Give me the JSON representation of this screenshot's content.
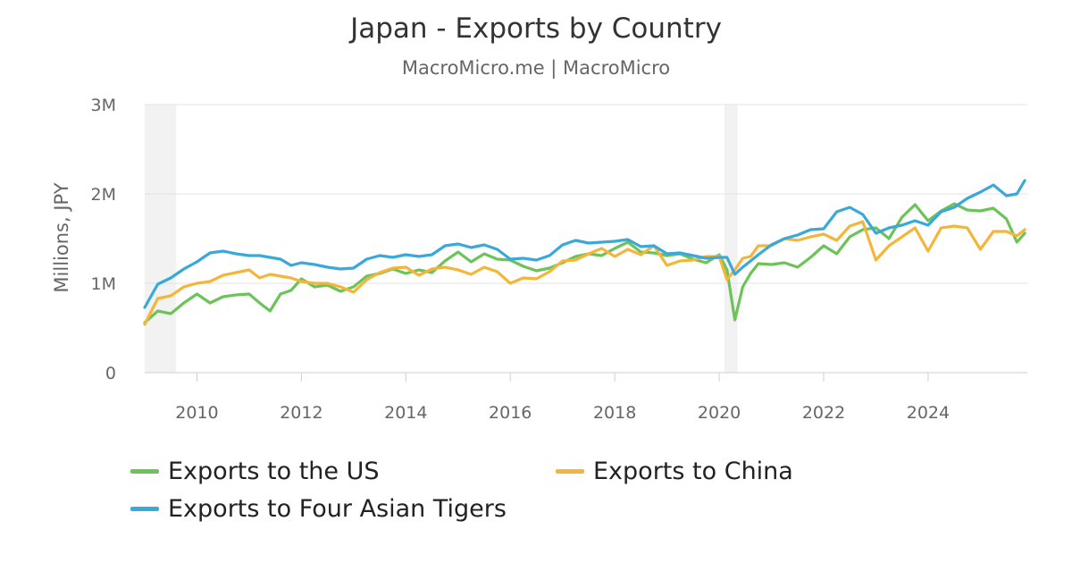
{
  "header": {
    "title": "Japan - Exports by Country",
    "subtitle": "MacroMicro.me | MacroMicro"
  },
  "colors": {
    "us": "#6cc35a",
    "china": "#f3b63b",
    "tigers": "#3aa8d8",
    "recession": "#f2f2f2",
    "grid": "#e3e3e3",
    "axis_text": "#666666"
  },
  "chart_data": {
    "type": "line",
    "ylabel": "Millions, JPY",
    "ylim": [
      0,
      3000000
    ],
    "xlim": [
      2009.0,
      2025.9
    ],
    "yticks": [
      {
        "value": 0,
        "label": "0"
      },
      {
        "value": 1000000,
        "label": "1M"
      },
      {
        "value": 2000000,
        "label": "2M"
      },
      {
        "value": 3000000,
        "label": "3M"
      }
    ],
    "xticks": [
      2010,
      2012,
      2014,
      2016,
      2018,
      2020,
      2022,
      2024
    ],
    "recession_bands": [
      [
        2009.0,
        2009.6
      ],
      [
        2020.1,
        2020.35
      ]
    ],
    "grid": true,
    "legend_position": "bottom",
    "series": [
      {
        "name": "Exports to the US",
        "key": "us",
        "points": [
          [
            2009.0,
            560000
          ],
          [
            2009.25,
            690000
          ],
          [
            2009.5,
            660000
          ],
          [
            2009.75,
            780000
          ],
          [
            2010.0,
            880000
          ],
          [
            2010.25,
            780000
          ],
          [
            2010.5,
            850000
          ],
          [
            2010.75,
            870000
          ],
          [
            2011.0,
            880000
          ],
          [
            2011.2,
            780000
          ],
          [
            2011.4,
            690000
          ],
          [
            2011.6,
            880000
          ],
          [
            2011.8,
            920000
          ],
          [
            2012.0,
            1050000
          ],
          [
            2012.25,
            960000
          ],
          [
            2012.5,
            980000
          ],
          [
            2012.75,
            910000
          ],
          [
            2013.0,
            960000
          ],
          [
            2013.25,
            1080000
          ],
          [
            2013.5,
            1110000
          ],
          [
            2013.75,
            1160000
          ],
          [
            2014.0,
            1110000
          ],
          [
            2014.25,
            1150000
          ],
          [
            2014.5,
            1120000
          ],
          [
            2014.75,
            1250000
          ],
          [
            2015.0,
            1350000
          ],
          [
            2015.25,
            1240000
          ],
          [
            2015.5,
            1330000
          ],
          [
            2015.75,
            1270000
          ],
          [
            2016.0,
            1260000
          ],
          [
            2016.25,
            1190000
          ],
          [
            2016.5,
            1140000
          ],
          [
            2016.75,
            1170000
          ],
          [
            2017.0,
            1230000
          ],
          [
            2017.25,
            1300000
          ],
          [
            2017.5,
            1330000
          ],
          [
            2017.75,
            1310000
          ],
          [
            2018.0,
            1390000
          ],
          [
            2018.25,
            1460000
          ],
          [
            2018.5,
            1350000
          ],
          [
            2018.75,
            1340000
          ],
          [
            2019.0,
            1310000
          ],
          [
            2019.25,
            1330000
          ],
          [
            2019.5,
            1270000
          ],
          [
            2019.75,
            1230000
          ],
          [
            2020.0,
            1320000
          ],
          [
            2020.15,
            1150000
          ],
          [
            2020.3,
            590000
          ],
          [
            2020.45,
            960000
          ],
          [
            2020.6,
            1110000
          ],
          [
            2020.75,
            1220000
          ],
          [
            2021.0,
            1210000
          ],
          [
            2021.25,
            1230000
          ],
          [
            2021.5,
            1180000
          ],
          [
            2021.75,
            1290000
          ],
          [
            2022.0,
            1420000
          ],
          [
            2022.25,
            1330000
          ],
          [
            2022.5,
            1520000
          ],
          [
            2022.75,
            1600000
          ],
          [
            2023.0,
            1620000
          ],
          [
            2023.25,
            1500000
          ],
          [
            2023.5,
            1740000
          ],
          [
            2023.75,
            1880000
          ],
          [
            2024.0,
            1700000
          ],
          [
            2024.25,
            1810000
          ],
          [
            2024.5,
            1890000
          ],
          [
            2024.75,
            1820000
          ],
          [
            2025.0,
            1810000
          ],
          [
            2025.25,
            1840000
          ],
          [
            2025.5,
            1720000
          ],
          [
            2025.7,
            1460000
          ],
          [
            2025.85,
            1560000
          ]
        ]
      },
      {
        "name": "Exports to China",
        "key": "china",
        "points": [
          [
            2009.0,
            540000
          ],
          [
            2009.25,
            830000
          ],
          [
            2009.5,
            860000
          ],
          [
            2009.75,
            960000
          ],
          [
            2010.0,
            1000000
          ],
          [
            2010.25,
            1020000
          ],
          [
            2010.5,
            1090000
          ],
          [
            2010.75,
            1120000
          ],
          [
            2011.0,
            1150000
          ],
          [
            2011.2,
            1060000
          ],
          [
            2011.4,
            1100000
          ],
          [
            2011.6,
            1080000
          ],
          [
            2011.8,
            1060000
          ],
          [
            2012.0,
            1020000
          ],
          [
            2012.25,
            1000000
          ],
          [
            2012.5,
            1000000
          ],
          [
            2012.75,
            960000
          ],
          [
            2013.0,
            900000
          ],
          [
            2013.25,
            1040000
          ],
          [
            2013.5,
            1120000
          ],
          [
            2013.75,
            1170000
          ],
          [
            2014.0,
            1180000
          ],
          [
            2014.25,
            1090000
          ],
          [
            2014.5,
            1160000
          ],
          [
            2014.75,
            1180000
          ],
          [
            2015.0,
            1150000
          ],
          [
            2015.25,
            1100000
          ],
          [
            2015.5,
            1180000
          ],
          [
            2015.75,
            1130000
          ],
          [
            2016.0,
            1000000
          ],
          [
            2016.25,
            1060000
          ],
          [
            2016.5,
            1050000
          ],
          [
            2016.75,
            1130000
          ],
          [
            2017.0,
            1250000
          ],
          [
            2017.25,
            1260000
          ],
          [
            2017.5,
            1330000
          ],
          [
            2017.75,
            1390000
          ],
          [
            2018.0,
            1300000
          ],
          [
            2018.25,
            1380000
          ],
          [
            2018.5,
            1320000
          ],
          [
            2018.75,
            1420000
          ],
          [
            2019.0,
            1200000
          ],
          [
            2019.25,
            1250000
          ],
          [
            2019.5,
            1260000
          ],
          [
            2019.75,
            1300000
          ],
          [
            2020.0,
            1300000
          ],
          [
            2020.15,
            1040000
          ],
          [
            2020.3,
            1150000
          ],
          [
            2020.45,
            1280000
          ],
          [
            2020.6,
            1300000
          ],
          [
            2020.75,
            1420000
          ],
          [
            2021.0,
            1420000
          ],
          [
            2021.25,
            1500000
          ],
          [
            2021.5,
            1480000
          ],
          [
            2021.75,
            1520000
          ],
          [
            2022.0,
            1550000
          ],
          [
            2022.25,
            1480000
          ],
          [
            2022.5,
            1640000
          ],
          [
            2022.75,
            1690000
          ],
          [
            2023.0,
            1260000
          ],
          [
            2023.25,
            1420000
          ],
          [
            2023.5,
            1520000
          ],
          [
            2023.75,
            1620000
          ],
          [
            2024.0,
            1360000
          ],
          [
            2024.25,
            1620000
          ],
          [
            2024.5,
            1640000
          ],
          [
            2024.75,
            1620000
          ],
          [
            2025.0,
            1380000
          ],
          [
            2025.25,
            1580000
          ],
          [
            2025.5,
            1580000
          ],
          [
            2025.7,
            1530000
          ],
          [
            2025.85,
            1600000
          ]
        ]
      },
      {
        "name": "Exports to Four Asian Tigers",
        "key": "tigers",
        "points": [
          [
            2009.0,
            730000
          ],
          [
            2009.25,
            990000
          ],
          [
            2009.5,
            1060000
          ],
          [
            2009.75,
            1160000
          ],
          [
            2010.0,
            1240000
          ],
          [
            2010.25,
            1340000
          ],
          [
            2010.5,
            1360000
          ],
          [
            2010.75,
            1330000
          ],
          [
            2011.0,
            1310000
          ],
          [
            2011.2,
            1310000
          ],
          [
            2011.4,
            1290000
          ],
          [
            2011.6,
            1270000
          ],
          [
            2011.8,
            1200000
          ],
          [
            2012.0,
            1230000
          ],
          [
            2012.25,
            1210000
          ],
          [
            2012.5,
            1180000
          ],
          [
            2012.75,
            1160000
          ],
          [
            2013.0,
            1170000
          ],
          [
            2013.25,
            1270000
          ],
          [
            2013.5,
            1310000
          ],
          [
            2013.75,
            1290000
          ],
          [
            2014.0,
            1320000
          ],
          [
            2014.25,
            1300000
          ],
          [
            2014.5,
            1320000
          ],
          [
            2014.75,
            1420000
          ],
          [
            2015.0,
            1440000
          ],
          [
            2015.25,
            1400000
          ],
          [
            2015.5,
            1430000
          ],
          [
            2015.75,
            1380000
          ],
          [
            2016.0,
            1270000
          ],
          [
            2016.25,
            1280000
          ],
          [
            2016.5,
            1260000
          ],
          [
            2016.75,
            1310000
          ],
          [
            2017.0,
            1430000
          ],
          [
            2017.25,
            1480000
          ],
          [
            2017.5,
            1450000
          ],
          [
            2017.75,
            1460000
          ],
          [
            2018.0,
            1470000
          ],
          [
            2018.25,
            1490000
          ],
          [
            2018.5,
            1410000
          ],
          [
            2018.75,
            1420000
          ],
          [
            2019.0,
            1330000
          ],
          [
            2019.25,
            1340000
          ],
          [
            2019.5,
            1310000
          ],
          [
            2019.75,
            1280000
          ],
          [
            2020.0,
            1290000
          ],
          [
            2020.15,
            1290000
          ],
          [
            2020.3,
            1100000
          ],
          [
            2020.45,
            1180000
          ],
          [
            2020.6,
            1250000
          ],
          [
            2020.75,
            1320000
          ],
          [
            2021.0,
            1430000
          ],
          [
            2021.25,
            1500000
          ],
          [
            2021.5,
            1540000
          ],
          [
            2021.75,
            1600000
          ],
          [
            2022.0,
            1610000
          ],
          [
            2022.25,
            1800000
          ],
          [
            2022.5,
            1850000
          ],
          [
            2022.75,
            1770000
          ],
          [
            2023.0,
            1560000
          ],
          [
            2023.25,
            1620000
          ],
          [
            2023.5,
            1650000
          ],
          [
            2023.75,
            1700000
          ],
          [
            2024.0,
            1650000
          ],
          [
            2024.25,
            1800000
          ],
          [
            2024.5,
            1850000
          ],
          [
            2024.75,
            1950000
          ],
          [
            2025.0,
            2020000
          ],
          [
            2025.25,
            2100000
          ],
          [
            2025.5,
            1980000
          ],
          [
            2025.7,
            2000000
          ],
          [
            2025.85,
            2150000
          ]
        ]
      }
    ]
  },
  "legend": {
    "us_label": "Exports to the US",
    "china_label": "Exports to China",
    "tigers_label": "Exports to Four Asian Tigers"
  }
}
